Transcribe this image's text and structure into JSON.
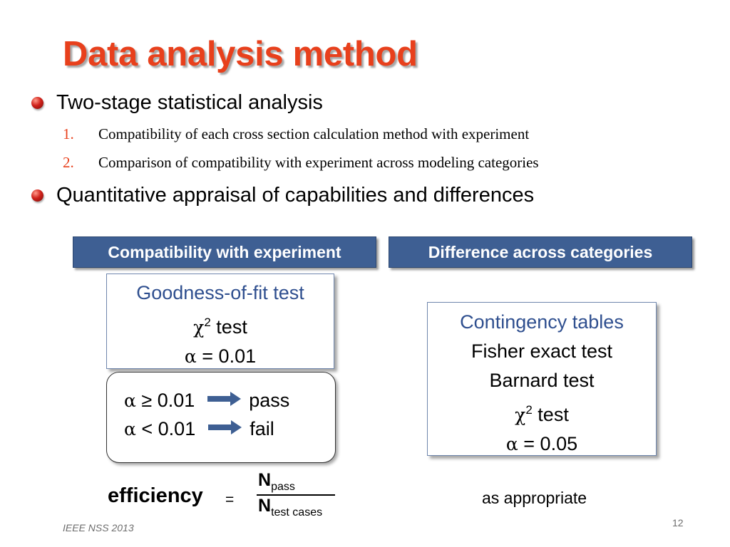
{
  "title": "Data analysis method",
  "bullets": [
    {
      "text": "Two-stage statistical analysis"
    },
    {
      "text": "Quantitative appraisal of capabilities and differences"
    }
  ],
  "subitems": [
    {
      "num": "1.",
      "text": "Compatibility of each cross section calculation method with experiment"
    },
    {
      "num": "2.",
      "text": "Comparison of compatibility with experiment across modeling categories"
    }
  ],
  "left_header": "Compatibility with experiment",
  "right_header": "Difference across categories",
  "left_panel": {
    "line1": "Goodness-of-fit test",
    "chi": "χ",
    "chi_sup": "2",
    "chi_text": " test",
    "alpha": "α",
    "alpha_text": " = 0.01"
  },
  "conditions": [
    {
      "alpha": "α",
      "op": " ≥ 0.01",
      "result": "pass"
    },
    {
      "alpha": "α",
      "op": " < 0.01",
      "result": "fail"
    }
  ],
  "right_panel": {
    "line1": "Contingency tables",
    "line2": "Fisher exact test",
    "line3": "Barnard test",
    "chi": "χ",
    "chi_sup": "2",
    "chi_text": " test",
    "alpha": "α",
    "alpha_text": " = 0.05"
  },
  "efficiency": {
    "label": "efficiency",
    "eq": "=",
    "num_main": "N",
    "num_sub": "pass",
    "den_main": "N",
    "den_sub": "test cases"
  },
  "as_appropriate": "as appropriate",
  "footer": "IEEE NSS 2013",
  "page_number": "12",
  "colors": {
    "title": "#e8401c",
    "header_bg": "#3e5f93",
    "panel_title": "#2f4f8f",
    "arrow": "#3e5f93"
  }
}
